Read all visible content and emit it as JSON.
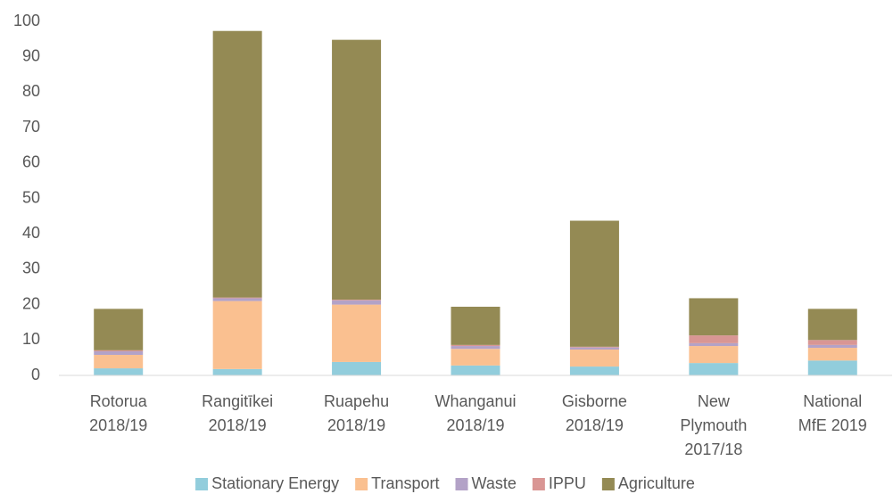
{
  "chart_data": {
    "type": "stacked_bar",
    "categories": [
      [
        "Rotorua",
        "2018/19"
      ],
      [
        "Rangitīkei",
        "2018/19"
      ],
      [
        "Ruapehu",
        "2018/19"
      ],
      [
        "Whanganui",
        "2018/19"
      ],
      [
        "Gisborne",
        "2018/19"
      ],
      [
        "New",
        "Plymouth",
        "2017/18"
      ],
      [
        "National",
        "MfE 2019"
      ]
    ],
    "series": [
      {
        "name": "Stationary Energy",
        "color": "#92cddc",
        "values": [
          2.0,
          1.8,
          3.8,
          2.8,
          2.5,
          3.5,
          4.2
        ]
      },
      {
        "name": "Transport",
        "color": "#fac090",
        "values": [
          3.8,
          19.2,
          16.2,
          4.7,
          4.8,
          4.8,
          3.6
        ]
      },
      {
        "name": "Waste",
        "color": "#b3a2c7",
        "values": [
          1.0,
          0.8,
          1.2,
          0.8,
          0.6,
          0.8,
          0.8
        ]
      },
      {
        "name": "IPPU",
        "color": "#d99694",
        "values": [
          0.3,
          0.2,
          0.2,
          0.3,
          0.2,
          2.2,
          1.4
        ]
      },
      {
        "name": "Agriculture",
        "color": "#948a54",
        "values": [
          11.7,
          75.3,
          73.4,
          10.8,
          35.6,
          10.5,
          8.8
        ]
      }
    ],
    "ylim": [
      0,
      100
    ],
    "yticks": [
      0,
      10,
      20,
      30,
      40,
      50,
      60,
      70,
      80,
      90,
      100
    ],
    "grid": false,
    "legend": "bottom"
  }
}
